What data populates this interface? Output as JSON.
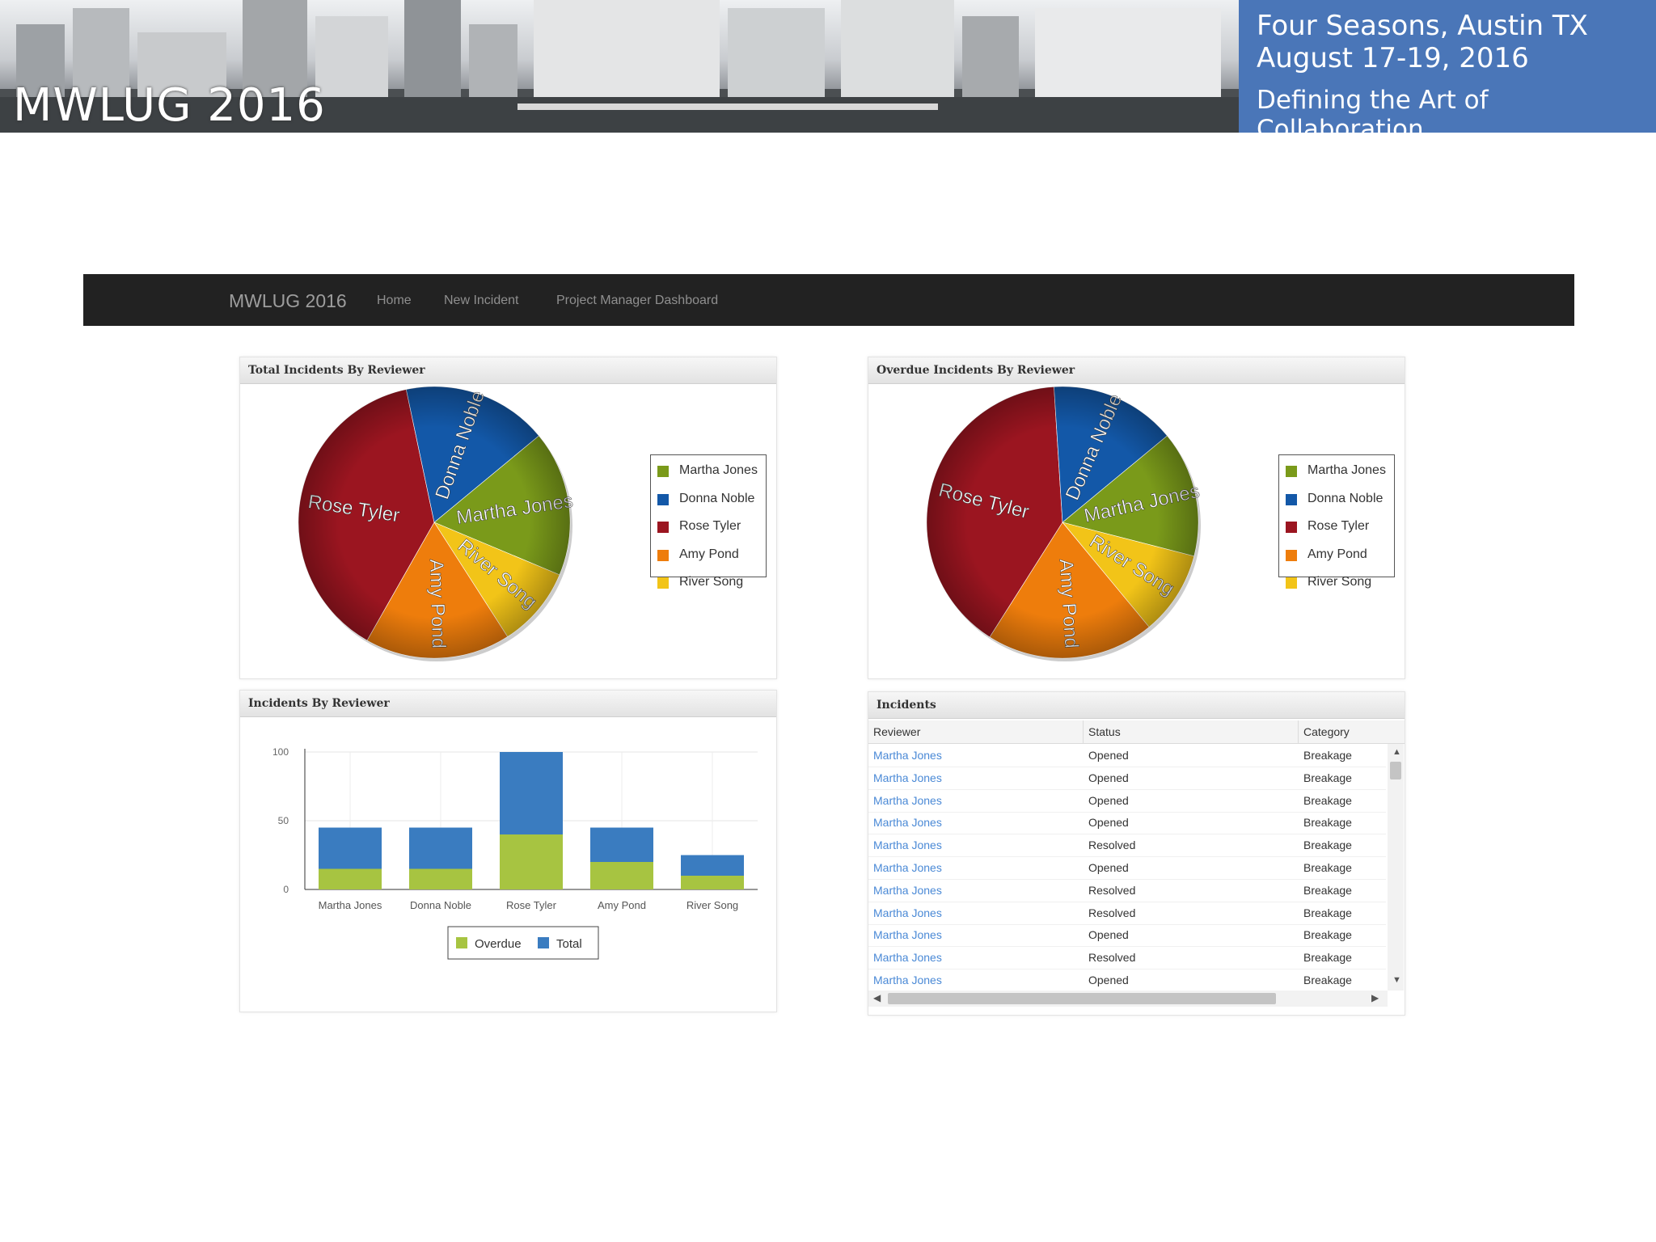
{
  "banner": {
    "title": "MWLUG 2016",
    "location": "Four Seasons, Austin TX",
    "dates": "August 17-19, 2016",
    "tagline": "Defining the Art of Collaboration",
    "accent": "#4a76b8"
  },
  "navbar": {
    "brand": "MWLUG 2016",
    "links": [
      "Home",
      "New Incident",
      "Project Manager Dashboard"
    ]
  },
  "panels": {
    "total_pie_title": "Total Incidents By Reviewer",
    "overdue_pie_title": "Overdue Incidents By Reviewer",
    "bar_title": "Incidents By Reviewer",
    "table_title": "Incidents"
  },
  "reviewers": [
    "Martha Jones",
    "Donna Noble",
    "Rose Tyler",
    "Amy Pond",
    "River Song"
  ],
  "reviewer_colors": [
    "#7a9a1a",
    "#1358a8",
    "#9b1520",
    "#ee7d0c",
    "#f2c418"
  ],
  "bar_legend": [
    "Overdue",
    "Total"
  ],
  "bar_colors": [
    "#a7c441",
    "#3a7cc0"
  ],
  "chart_data": [
    {
      "type": "pie",
      "title": "Total Incidents By Reviewer",
      "categories": [
        "Martha Jones",
        "Donna Noble",
        "Rose Tyler",
        "Amy Pond",
        "River Song"
      ],
      "values": [
        45,
        45,
        100,
        45,
        25
      ],
      "legend": "right"
    },
    {
      "type": "pie",
      "title": "Overdue Incidents By Reviewer",
      "categories": [
        "Martha Jones",
        "Donna Noble",
        "Rose Tyler",
        "Amy Pond",
        "River Song"
      ],
      "values": [
        15,
        15,
        40,
        20,
        10
      ],
      "legend": "right"
    },
    {
      "type": "bar",
      "title": "Incidents By Reviewer",
      "categories": [
        "Martha Jones",
        "Donna Noble",
        "Rose Tyler",
        "Amy Pond",
        "River Song"
      ],
      "series": [
        {
          "name": "Overdue",
          "values": [
            15,
            15,
            40,
            20,
            10
          ]
        },
        {
          "name": "Total",
          "values": [
            45,
            45,
            100,
            45,
            25
          ]
        }
      ],
      "ylim": [
        0,
        100
      ],
      "yticks": [
        "0",
        "50",
        "100"
      ],
      "legend": "bottom",
      "grid": true
    }
  ],
  "table": {
    "columns": [
      "Reviewer",
      "Status",
      "Category"
    ],
    "rows": [
      [
        "Martha Jones",
        "Opened",
        "Breakage"
      ],
      [
        "Martha Jones",
        "Opened",
        "Breakage"
      ],
      [
        "Martha Jones",
        "Opened",
        "Breakage"
      ],
      [
        "Martha Jones",
        "Opened",
        "Breakage"
      ],
      [
        "Martha Jones",
        "Resolved",
        "Breakage"
      ],
      [
        "Martha Jones",
        "Opened",
        "Breakage"
      ],
      [
        "Martha Jones",
        "Resolved",
        "Breakage"
      ],
      [
        "Martha Jones",
        "Resolved",
        "Breakage"
      ],
      [
        "Martha Jones",
        "Opened",
        "Breakage"
      ],
      [
        "Martha Jones",
        "Resolved",
        "Breakage"
      ],
      [
        "Martha Jones",
        "Opened",
        "Breakage"
      ]
    ]
  }
}
